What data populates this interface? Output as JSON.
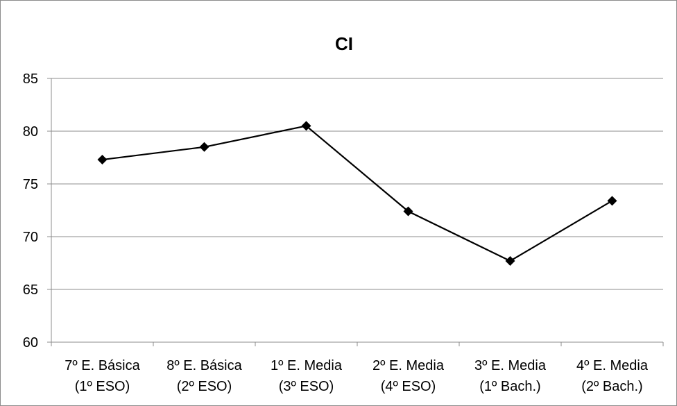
{
  "chart_data": {
    "type": "line",
    "title": "CI",
    "categories": [
      [
        "7º E. Básica",
        "(1º ESO)"
      ],
      [
        "8º E. Básica",
        "(2º ESO)"
      ],
      [
        "1º E. Media",
        "(3º ESO)"
      ],
      [
        "2º E. Media",
        "(4º ESO)"
      ],
      [
        "3º E. Media",
        "(1º Bach.)"
      ],
      [
        "4º E. Media",
        "(2º Bach.)"
      ]
    ],
    "series": [
      {
        "values": [
          77.3,
          78.5,
          80.5,
          72.4,
          67.7,
          73.4
        ],
        "color": "#000000",
        "marker": "diamond"
      }
    ],
    "ylim": [
      60,
      85
    ],
    "yticks": [
      60,
      65,
      70,
      75,
      80,
      85
    ],
    "grid": true,
    "legend": "none",
    "xlabel": "",
    "ylabel": ""
  }
}
